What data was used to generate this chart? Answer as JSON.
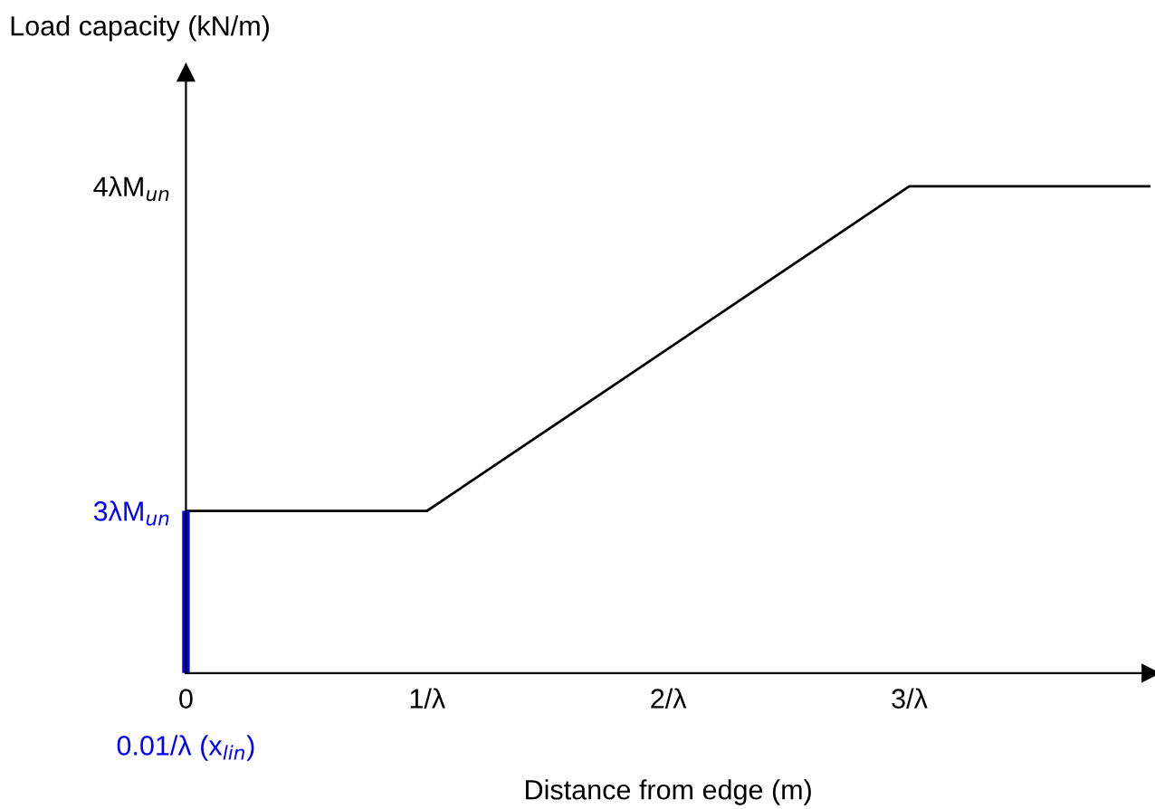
{
  "chart_data": {
    "type": "line",
    "ylabel": "Load capacity (kN/m)",
    "xlabel": "Distance from edge (m)",
    "x": [
      0,
      1,
      3,
      4
    ],
    "series": [
      {
        "color": "#000000",
        "values": [
          3,
          3,
          4,
          4
        ]
      },
      {
        "color": "#0000ff",
        "x": [
          0,
          0
        ],
        "values": [
          2.5,
          3
        ]
      }
    ],
    "xlim": [
      0,
      4
    ],
    "ylim": [
      2.5,
      4.35
    ],
    "xticks": [
      0,
      {
        "value": 1,
        "label": "1/λ"
      },
      {
        "value": 2,
        "label": "2/λ"
      },
      {
        "value": 3,
        "label": "3/λ"
      }
    ],
    "yticks": [
      {
        "value": 3,
        "label": "3λM$_{un}$"
      },
      {
        "value": 4,
        "label": "4λM$_{un}$"
      }
    ],
    "annotations": [
      {
        "text": "0.01/λ (x$_{lin}$)",
        "x": 0,
        "y": 2.5
      }
    ],
    "grid": false,
    "legend": false,
    "marker": "none",
    "line_style": "solid"
  }
}
